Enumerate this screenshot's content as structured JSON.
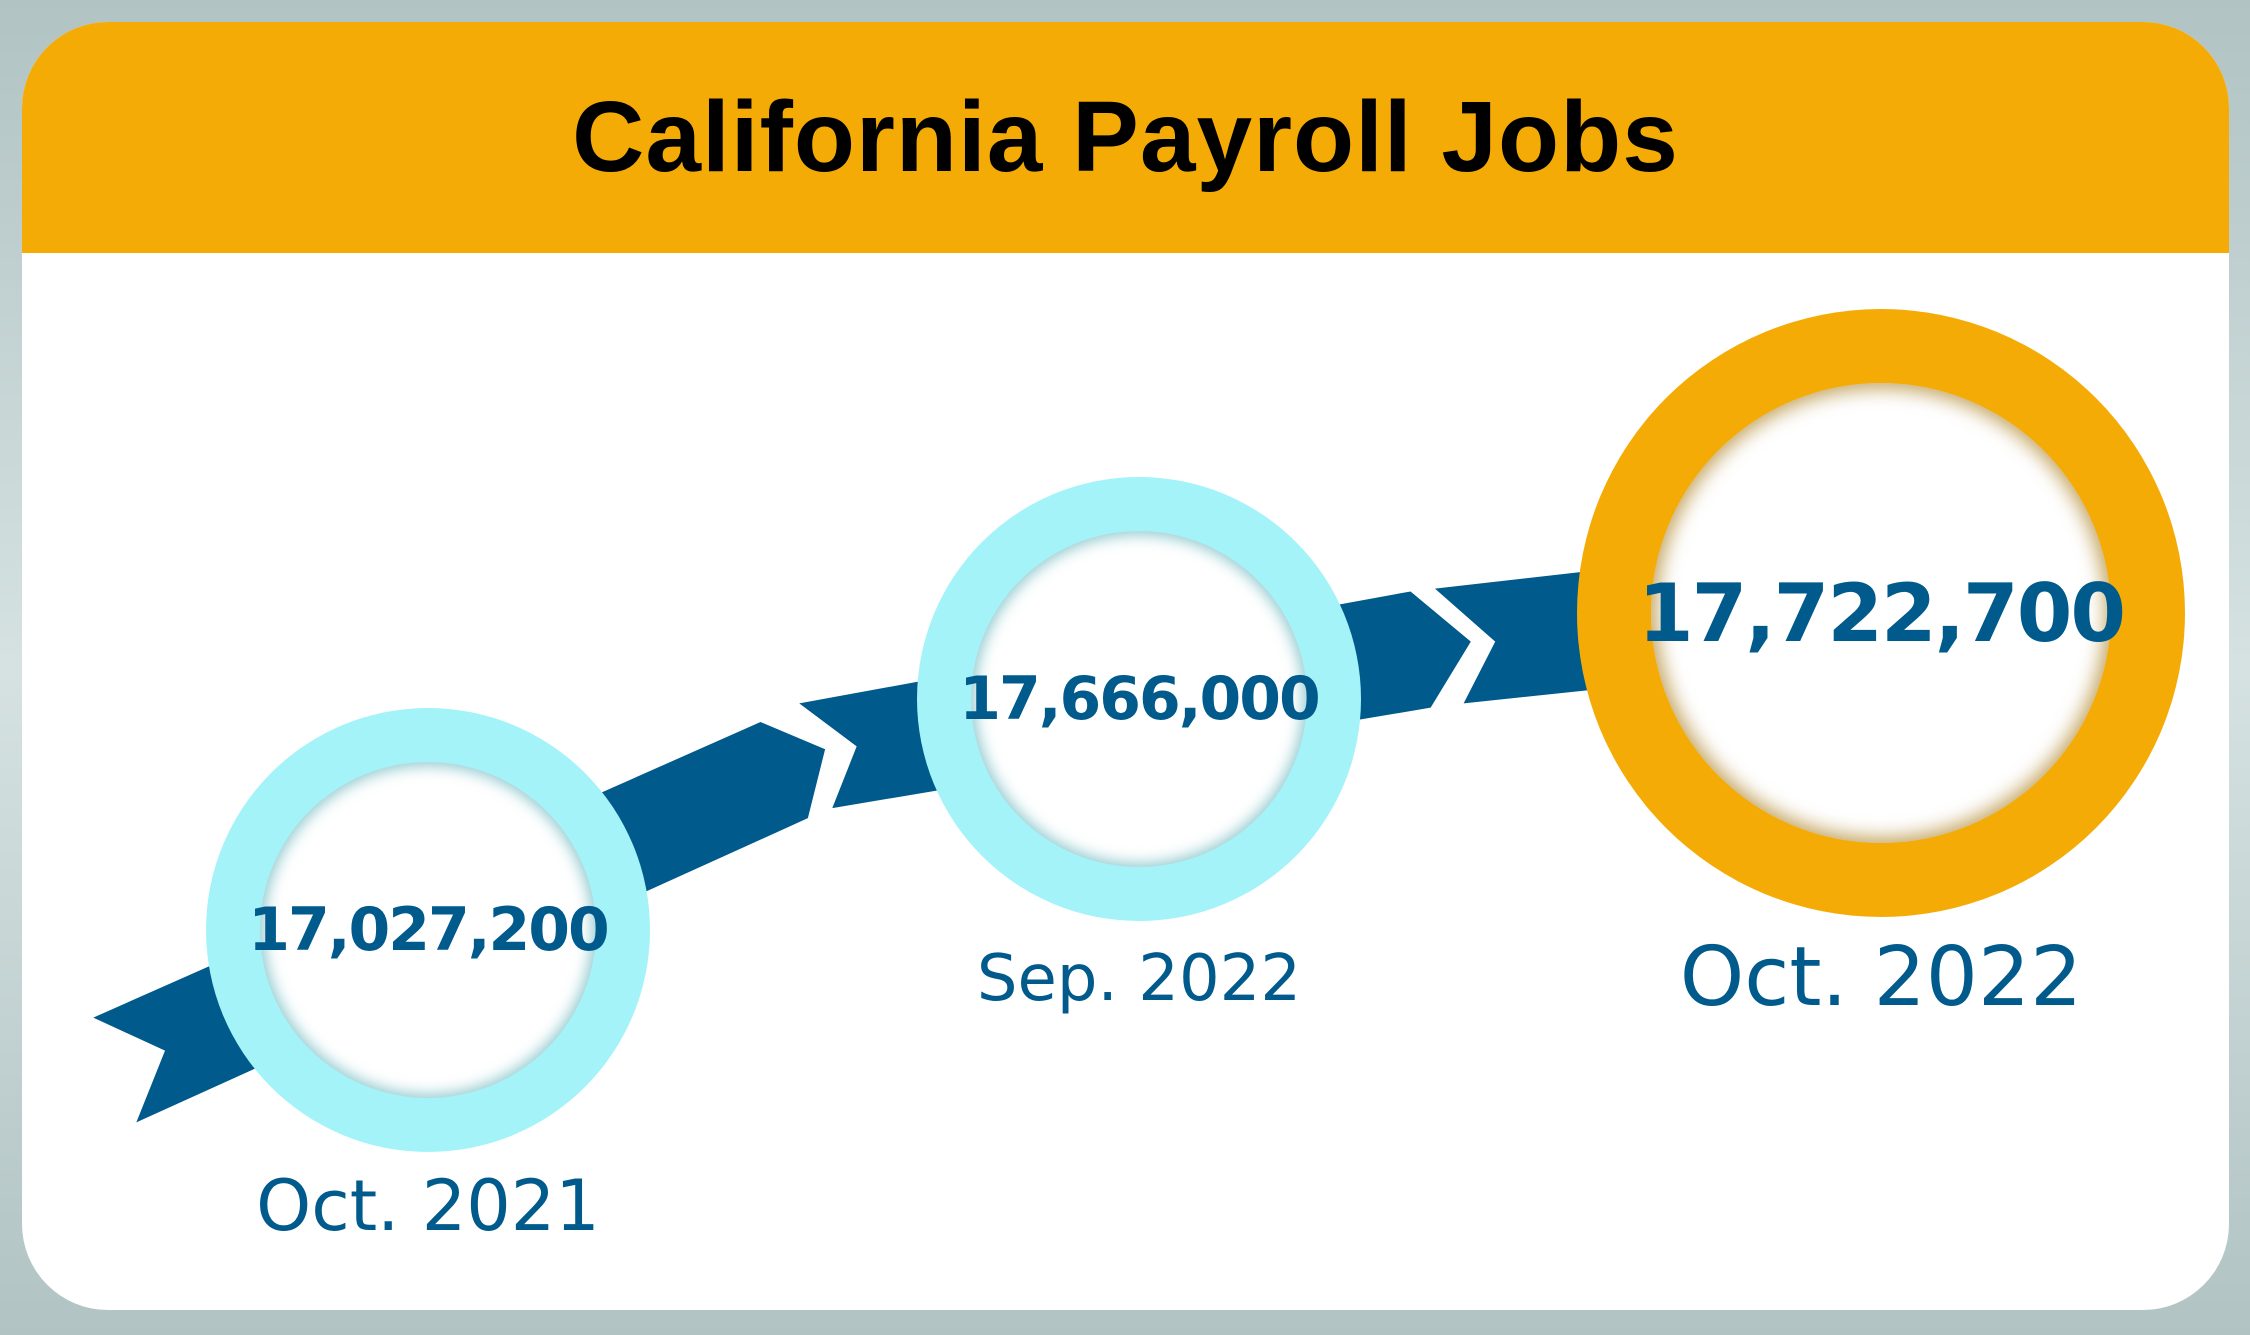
{
  "title": "California Payroll Jobs",
  "colors": {
    "header": "#f5ab05",
    "ring_past": "#a3f3f9",
    "ring_current": "#f5ab05",
    "text": "#005a8c",
    "arrow": "#005a8c"
  },
  "points": [
    {
      "period": "Oct. 2021",
      "value": "17,027,200"
    },
    {
      "period": "Sep. 2022",
      "value": "17,666,000"
    },
    {
      "period": "Oct. 2022",
      "value": "17,722,700"
    }
  ]
}
